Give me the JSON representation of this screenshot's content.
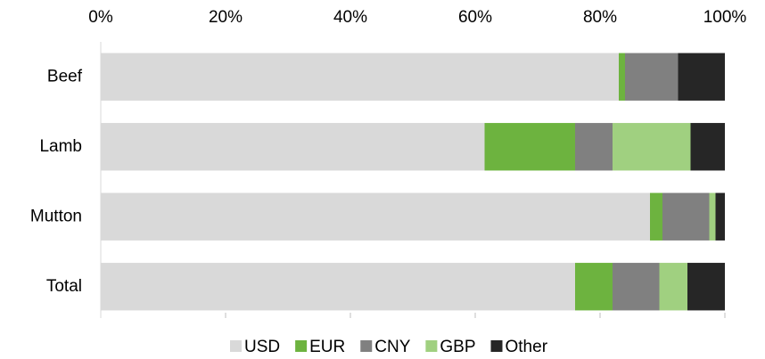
{
  "chart_data": {
    "type": "stacked-bar-horizontal",
    "categories": [
      "Beef",
      "Lamb",
      "Mutton",
      "Total"
    ],
    "series": [
      {
        "name": "USD",
        "color": "#d9d9d9",
        "values": [
          83,
          61.5,
          88,
          76
        ]
      },
      {
        "name": "EUR",
        "color": "#6db33f",
        "values": [
          1,
          14.5,
          2,
          6
        ]
      },
      {
        "name": "CNY",
        "color": "#808080",
        "values": [
          8.5,
          6,
          7.5,
          7.5
        ]
      },
      {
        "name": "GBP",
        "color": "#a0d080",
        "values": [
          0,
          12.5,
          1,
          4.5
        ]
      },
      {
        "name": "Other",
        "color": "#262626",
        "values": [
          7.5,
          5.5,
          1.5,
          6
        ]
      }
    ],
    "xlim": [
      0,
      100
    ],
    "xticks": [
      {
        "value": 0,
        "label": "0%"
      },
      {
        "value": 20,
        "label": "20%"
      },
      {
        "value": 40,
        "label": "40%"
      },
      {
        "value": 60,
        "label": "60%"
      },
      {
        "value": 80,
        "label": "80%"
      },
      {
        "value": 100,
        "label": "100%"
      }
    ],
    "legend": "bottom"
  }
}
